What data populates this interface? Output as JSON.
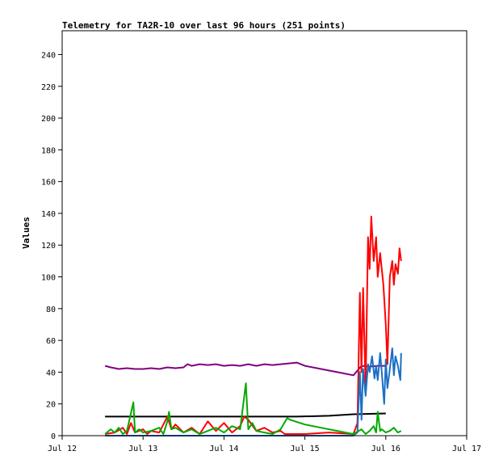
{
  "chart_data": {
    "type": "line",
    "title": "Telemetry for TA2R-10 over last 96 hours (251 points)",
    "xlabel": "",
    "ylabel": "Values",
    "xlim": [
      0,
      5
    ],
    "ylim": [
      0,
      255
    ],
    "x_tick_labels": [
      "Jul 12",
      "Jul 13",
      "Jul 14",
      "Jul 15",
      "Jul 16",
      "Jul 17"
    ],
    "y_ticks": [
      0,
      20,
      40,
      60,
      80,
      100,
      120,
      140,
      160,
      180,
      200,
      220,
      240
    ],
    "grid": false,
    "legend": "none",
    "series": [
      {
        "color": "#800080",
        "points": [
          [
            0.53,
            44
          ],
          [
            0.6,
            43
          ],
          [
            0.7,
            42
          ],
          [
            0.8,
            42.5
          ],
          [
            0.9,
            42
          ],
          [
            1.0,
            42
          ],
          [
            1.1,
            42.5
          ],
          [
            1.2,
            42
          ],
          [
            1.3,
            43
          ],
          [
            1.4,
            42.5
          ],
          [
            1.5,
            43
          ],
          [
            1.55,
            45
          ],
          [
            1.6,
            44
          ],
          [
            1.7,
            45
          ],
          [
            1.8,
            44.5
          ],
          [
            1.9,
            45
          ],
          [
            2.0,
            44
          ],
          [
            2.1,
            44.5
          ],
          [
            2.2,
            44
          ],
          [
            2.3,
            45
          ],
          [
            2.4,
            44
          ],
          [
            2.5,
            45
          ],
          [
            2.6,
            44.5
          ],
          [
            2.7,
            45
          ],
          [
            2.8,
            45.5
          ],
          [
            2.9,
            46
          ],
          [
            3.0,
            44
          ],
          [
            3.2,
            42
          ],
          [
            3.4,
            40
          ],
          [
            3.6,
            38
          ],
          [
            3.7,
            44
          ],
          [
            3.8,
            43.5
          ],
          [
            3.9,
            44
          ],
          [
            4.0,
            44
          ]
        ]
      },
      {
        "color": "#000000",
        "points": [
          [
            0.53,
            12
          ],
          [
            2.9,
            12
          ],
          [
            3.3,
            12.5
          ],
          [
            3.6,
            13.5
          ],
          [
            4.0,
            14
          ]
        ]
      },
      {
        "color": "#ff0000",
        "points": [
          [
            0.53,
            1
          ],
          [
            0.65,
            2
          ],
          [
            0.75,
            5
          ],
          [
            0.8,
            1
          ],
          [
            0.85,
            8
          ],
          [
            0.9,
            2
          ],
          [
            1.0,
            4
          ],
          [
            1.05,
            1
          ],
          [
            1.1,
            3
          ],
          [
            1.2,
            2
          ],
          [
            1.3,
            12
          ],
          [
            1.35,
            4
          ],
          [
            1.4,
            7
          ],
          [
            1.5,
            2
          ],
          [
            1.6,
            5
          ],
          [
            1.7,
            1
          ],
          [
            1.8,
            9
          ],
          [
            1.9,
            3
          ],
          [
            2.0,
            8
          ],
          [
            2.1,
            2
          ],
          [
            2.2,
            6
          ],
          [
            2.25,
            12
          ],
          [
            2.3,
            10
          ],
          [
            2.4,
            3
          ],
          [
            2.5,
            5
          ],
          [
            2.6,
            2
          ],
          [
            2.7,
            3
          ],
          [
            2.75,
            1
          ],
          [
            3.0,
            1
          ],
          [
            3.3,
            2
          ],
          [
            3.6,
            1
          ],
          [
            3.65,
            8
          ],
          [
            3.68,
            90
          ],
          [
            3.7,
            40
          ],
          [
            3.72,
            93
          ],
          [
            3.75,
            30
          ],
          [
            3.78,
            125
          ],
          [
            3.8,
            105
          ],
          [
            3.82,
            138
          ],
          [
            3.85,
            110
          ],
          [
            3.88,
            125
          ],
          [
            3.9,
            100
          ],
          [
            3.93,
            115
          ],
          [
            3.95,
            105
          ],
          [
            3.97,
            95
          ],
          [
            4.0,
            70
          ],
          [
            4.02,
            45
          ],
          [
            4.05,
            100
          ],
          [
            4.08,
            110
          ],
          [
            4.1,
            95
          ],
          [
            4.12,
            108
          ],
          [
            4.15,
            102
          ],
          [
            4.17,
            118
          ],
          [
            4.19,
            110
          ]
        ]
      },
      {
        "color": "#1c6fc4",
        "points": [
          [
            0.53,
            0
          ],
          [
            3.6,
            0
          ],
          [
            3.65,
            2
          ],
          [
            3.68,
            40
          ],
          [
            3.7,
            10
          ],
          [
            3.72,
            42
          ],
          [
            3.75,
            25
          ],
          [
            3.78,
            45
          ],
          [
            3.8,
            40
          ],
          [
            3.83,
            50
          ],
          [
            3.86,
            36
          ],
          [
            3.88,
            44
          ],
          [
            3.9,
            35
          ],
          [
            3.93,
            52
          ],
          [
            3.95,
            40
          ],
          [
            3.98,
            20
          ],
          [
            4.0,
            48
          ],
          [
            4.02,
            30
          ],
          [
            4.05,
            42
          ],
          [
            4.08,
            55
          ],
          [
            4.1,
            38
          ],
          [
            4.12,
            50
          ],
          [
            4.15,
            44
          ],
          [
            4.18,
            35
          ],
          [
            4.19,
            52
          ]
        ]
      },
      {
        "color": "#00aa00",
        "points": [
          [
            0.53,
            1
          ],
          [
            0.6,
            4
          ],
          [
            0.65,
            2
          ],
          [
            0.7,
            5
          ],
          [
            0.75,
            1
          ],
          [
            0.8,
            3
          ],
          [
            0.88,
            21
          ],
          [
            0.9,
            2
          ],
          [
            0.95,
            4
          ],
          [
            1.0,
            2
          ],
          [
            1.1,
            3
          ],
          [
            1.2,
            5
          ],
          [
            1.25,
            1
          ],
          [
            1.3,
            9
          ],
          [
            1.32,
            15
          ],
          [
            1.35,
            4
          ],
          [
            1.4,
            5
          ],
          [
            1.5,
            2
          ],
          [
            1.6,
            4
          ],
          [
            1.7,
            1
          ],
          [
            1.8,
            3
          ],
          [
            1.9,
            5
          ],
          [
            2.0,
            2
          ],
          [
            2.1,
            6
          ],
          [
            2.2,
            4
          ],
          [
            2.27,
            33
          ],
          [
            2.3,
            4
          ],
          [
            2.35,
            8
          ],
          [
            2.4,
            3
          ],
          [
            2.5,
            2
          ],
          [
            2.6,
            1
          ],
          [
            2.7,
            4
          ],
          [
            2.78,
            11
          ],
          [
            2.82,
            10
          ],
          [
            3.0,
            7
          ],
          [
            3.2,
            5
          ],
          [
            3.4,
            3
          ],
          [
            3.6,
            1
          ],
          [
            3.7,
            4
          ],
          [
            3.75,
            1
          ],
          [
            3.8,
            3
          ],
          [
            3.85,
            6
          ],
          [
            3.88,
            2
          ],
          [
            3.9,
            15
          ],
          [
            3.93,
            3
          ],
          [
            3.95,
            4
          ],
          [
            4.0,
            2
          ],
          [
            4.05,
            3
          ],
          [
            4.1,
            5
          ],
          [
            4.15,
            2
          ],
          [
            4.19,
            3
          ]
        ]
      }
    ]
  }
}
